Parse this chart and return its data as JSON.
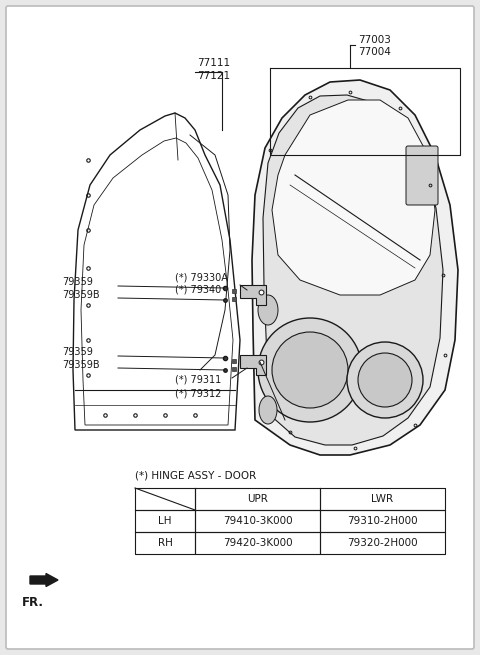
{
  "bg_color": "#ffffff",
  "border_color": "#bbbbbb",
  "line_color": "#1a1a1a",
  "fig_bg": "#e8e8e8",
  "table_title": "(*) HINGE ASSY - DOOR",
  "table_headers": [
    "",
    "UPR",
    "LWR"
  ],
  "table_rows": [
    [
      "LH",
      "79410-3K000",
      "79310-2H000"
    ],
    [
      "RH",
      "79420-3K000",
      "79320-2H000"
    ]
  ],
  "fr_label": "FR.",
  "label_77003": "77003",
  "label_77004": "77004",
  "label_77111": "77111",
  "label_77121": "77121",
  "label_79330A": "(*) 79330A",
  "label_79340": "(*) 79340",
  "label_79359": "79359",
  "label_79359B": "79359B",
  "label_79311": "(*) 79311",
  "label_79312": "(*) 79312"
}
